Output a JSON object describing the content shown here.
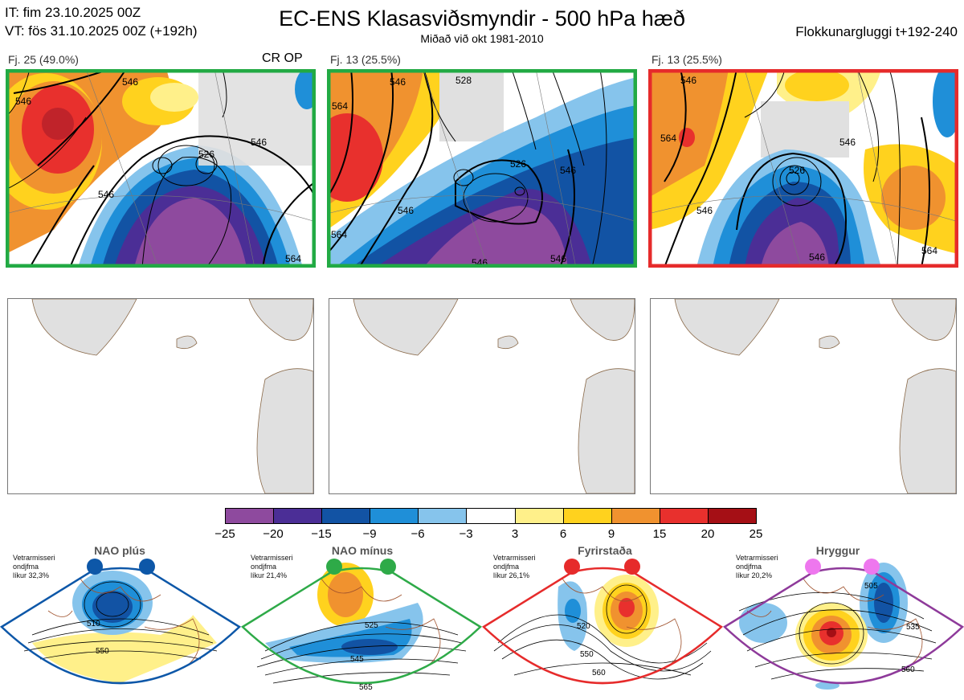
{
  "header": {
    "it_line": "IT: fim 23.10.2025 00Z",
    "vt_line": "VT: fös 31.10.2025 00Z  (+192h)",
    "title": "EC-ENS Klasasviðsmyndir - 500 hPa hæð",
    "subtitle": "Miðað við okt 1981-2010",
    "window": "Flokkunargluggi t+192-240"
  },
  "clusters": [
    {
      "label": "Fj. 25 (49.0%)",
      "tag": "CR OP",
      "frame_color": "#22aa44",
      "contours": [
        "546",
        "546",
        "546",
        "526",
        "546",
        "564"
      ]
    },
    {
      "label": "Fj. 13 (25.5%)",
      "tag": "",
      "frame_color": "#22aa44",
      "contours": [
        "546",
        "528",
        "564",
        "546",
        "546",
        "546",
        "564",
        "526",
        "546"
      ]
    },
    {
      "label": "Fj. 13 (25.5%)",
      "tag": "",
      "frame_color": "#e62b2b",
      "contours": [
        "546",
        "564",
        "546",
        "526",
        "546",
        "564",
        "546"
      ]
    }
  ],
  "colorbar": {
    "colors": [
      "#8e4a9e",
      "#4b2e96",
      "#1253a4",
      "#1f8fd8",
      "#86c4ec",
      "#ffffff",
      "#fff08a",
      "#ffd21e",
      "#f0922f",
      "#e8302d",
      "#a50f15"
    ],
    "ticks": [
      "−25",
      "−20",
      "−15",
      "−9",
      "−6",
      "−3",
      "3",
      "6",
      "9",
      "15",
      "20",
      "25"
    ]
  },
  "regimes": [
    {
      "name": "NAO plús",
      "note": [
        "Vetrarmisseri",
        "ondjfma",
        "líkur 32,3%"
      ],
      "color": "#0d57a8",
      "contours": [
        "510",
        "550"
      ]
    },
    {
      "name": "NAO mínus",
      "note": [
        "Vetrarmisseri",
        "ondjfma",
        "líkur 21,4%"
      ],
      "color": "#2eaa48",
      "contours": [
        "525",
        "545",
        "565"
      ]
    },
    {
      "name": "Fyrirstaða",
      "note": [
        "Vetrarmisseri",
        "ondjfma",
        "líkur 26,1%"
      ],
      "color": "#e62b2b",
      "contours": [
        "520",
        "550",
        "560"
      ]
    },
    {
      "name": "Hryggur",
      "note": [
        "Vetrarmisseri",
        "ondjfma",
        "líkur 20,2%"
      ],
      "color": "#8e3a9a",
      "contours": [
        "505",
        "535",
        "560"
      ]
    }
  ]
}
